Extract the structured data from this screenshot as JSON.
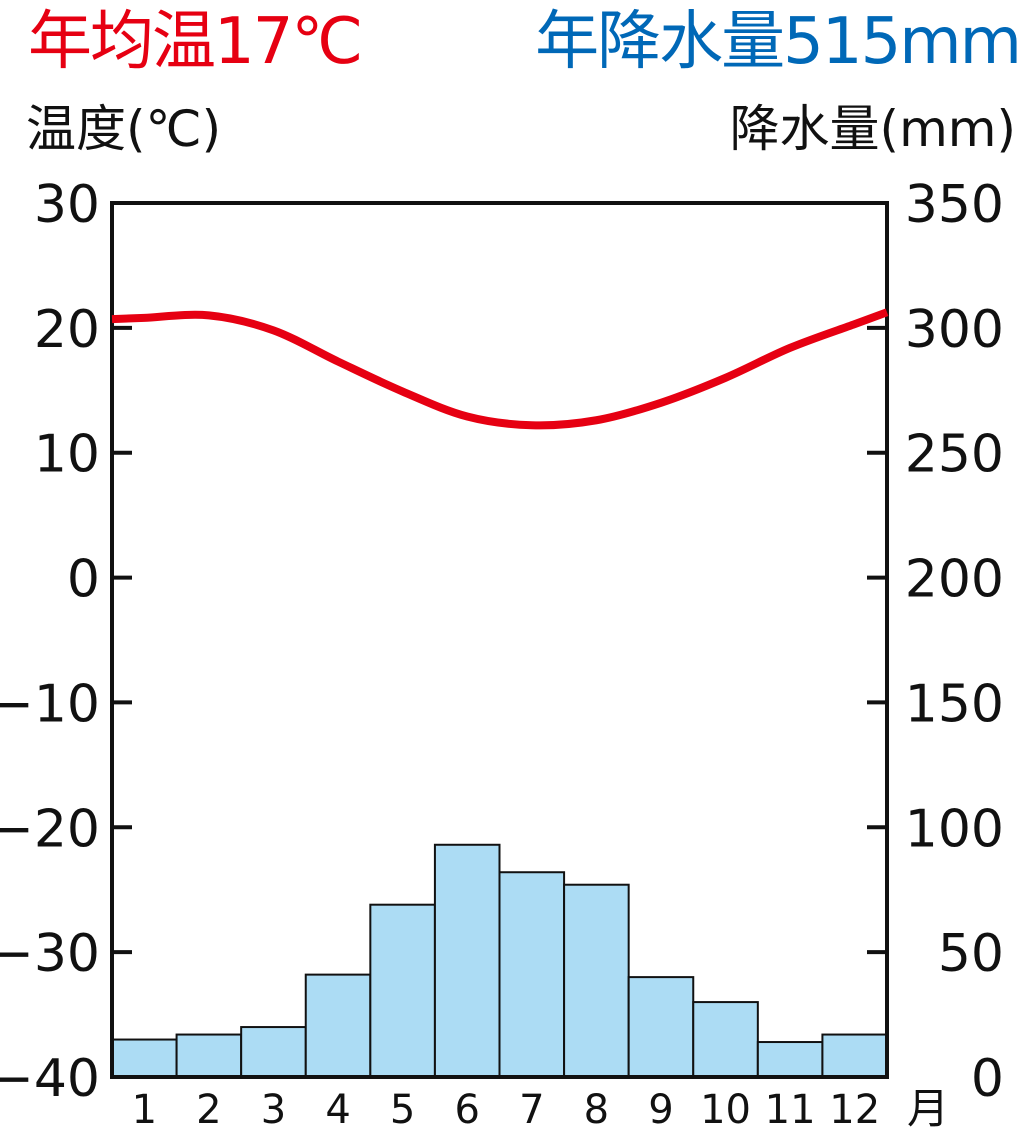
{
  "header": {
    "annual_temp": "年均温17℃",
    "annual_precip": "年降水量515mm",
    "temp_axis_label": "温度(℃)",
    "precip_axis_label": "降水量(mm)"
  },
  "chart_data": {
    "type": "bar+line",
    "categories": [
      "1",
      "2",
      "3",
      "4",
      "5",
      "6",
      "7",
      "8",
      "9",
      "10",
      "11",
      "12"
    ],
    "x_unit": "月",
    "temperature": {
      "unit": "℃",
      "color": "#e60012",
      "values": [
        20.8,
        21,
        19.8,
        17.3,
        14.9,
        12.9,
        12.2,
        12.6,
        14,
        16,
        18.4,
        20.3
      ],
      "ylim": [
        -40,
        30
      ],
      "ticks": [
        "30",
        "20",
        "10",
        "0",
        "−10",
        "−20",
        "−30",
        "−40"
      ]
    },
    "precipitation": {
      "unit": "mm",
      "color": "#acdcf4",
      "values": [
        15,
        17,
        20,
        41,
        69,
        93,
        82,
        77,
        40,
        30,
        14,
        17
      ],
      "ylim": [
        0,
        350
      ],
      "ticks": [
        "350",
        "300",
        "250",
        "200",
        "150",
        "100",
        "50",
        "0"
      ]
    }
  }
}
